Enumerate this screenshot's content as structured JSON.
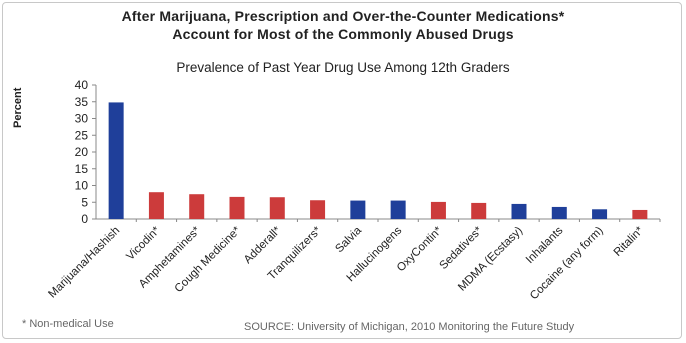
{
  "chart_data": {
    "type": "bar",
    "title": "After Marijuana, Prescription and Over-the-Counter Medications*",
    "title_line2": "Account for Most of the Commonly Abused Drugs",
    "subtitle": "Prevalence of Past Year Drug Use Among 12th Graders",
    "xlabel": "",
    "ylabel": "Percent",
    "ylim": [
      0,
      40
    ],
    "yticks": [
      0,
      5,
      10,
      15,
      20,
      25,
      30,
      35,
      40
    ],
    "categories": [
      "Marijuana/Hashish",
      "Vicodin*",
      "Amphetamines*",
      "Cough Medicine*",
      "Adderall*",
      "Tranquilizers*",
      "Salvia",
      "Hallucinogens",
      "OxyContin*",
      "Sedatives*",
      "MDMA (Ecstasy)",
      "Inhalants",
      "Cocaine (any form)",
      "Ritalin*"
    ],
    "values": [
      34.8,
      8.0,
      7.4,
      6.6,
      6.5,
      5.6,
      5.5,
      5.5,
      5.1,
      4.8,
      4.5,
      3.6,
      2.9,
      2.7
    ],
    "bar_groups": [
      "illicit",
      "medication",
      "medication",
      "medication",
      "medication",
      "medication",
      "illicit",
      "illicit",
      "medication",
      "medication",
      "illicit",
      "illicit",
      "illicit",
      "medication"
    ],
    "colors": {
      "illicit": "#1f3f9a",
      "medication": "#cc3b3b"
    },
    "grid": false,
    "legend": "none"
  },
  "footnote": "* Non-medical Use",
  "source": "SOURCE: University of Michigan, 2010 Monitoring the Future Study"
}
